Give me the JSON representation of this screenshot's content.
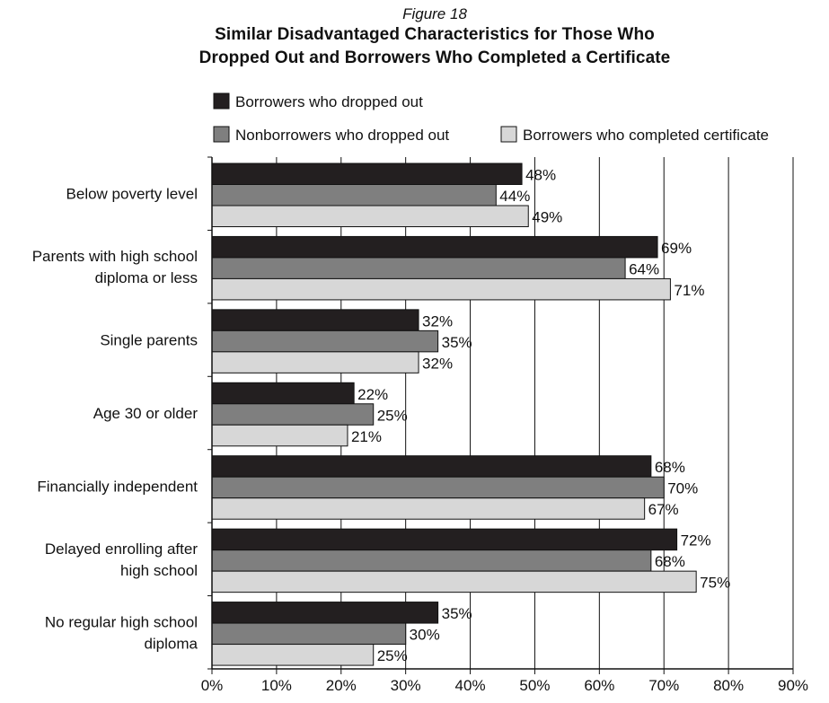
{
  "figure_label": "Figure 18",
  "title_lines": [
    "Similar Disadvantaged Characteristics for Those Who",
    "Dropped Out and Borrowers Who Completed a Certificate"
  ],
  "chart_data": {
    "type": "bar",
    "orientation": "horizontal",
    "title": "Similar Disadvantaged Characteristics for Those Who Dropped Out and Borrowers Who Completed a Certificate",
    "categories": [
      [
        "Below poverty level"
      ],
      [
        "Parents with high school",
        "diploma or less"
      ],
      [
        "Single parents"
      ],
      [
        "Age 30 or older"
      ],
      [
        "Financially independent"
      ],
      [
        "Delayed enrolling after",
        "high school"
      ],
      [
        "No regular high school",
        "diploma"
      ]
    ],
    "series": [
      {
        "name": "Borrowers who dropped out",
        "color": "#231f20",
        "values": [
          48,
          69,
          32,
          22,
          68,
          72,
          35
        ]
      },
      {
        "name": "Nonborrowers who dropped out",
        "color": "#7f7f7f",
        "values": [
          44,
          64,
          35,
          25,
          70,
          68,
          30
        ]
      },
      {
        "name": "Borrowers who completed certificate",
        "color": "#d7d7d7",
        "values": [
          49,
          71,
          32,
          21,
          67,
          75,
          25
        ]
      }
    ],
    "value_suffix": "%",
    "xlim": [
      0,
      90
    ],
    "xticks": [
      "0%",
      "10%",
      "20%",
      "30%",
      "40%",
      "50%",
      "60%",
      "70%",
      "80%",
      "90%"
    ],
    "grid": true,
    "legend_position": "top"
  }
}
